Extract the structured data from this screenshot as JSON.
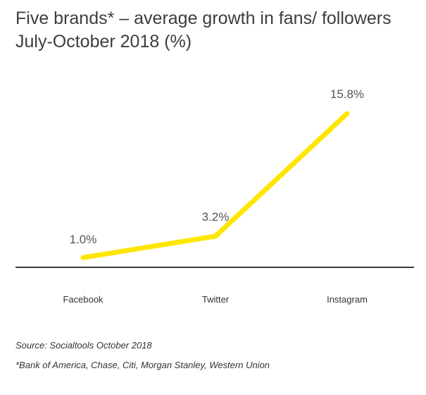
{
  "chart_data": {
    "type": "line",
    "title": "Five brands* – average growth in fans/ followers July-October 2018 (%)",
    "categories": [
      "Facebook",
      "Twitter",
      "Instagram"
    ],
    "series": [
      {
        "values": [
          1.0,
          3.2,
          15.8
        ],
        "labels": [
          "1.0%",
          "3.2%",
          "15.8%"
        ]
      }
    ],
    "ylim": [
      0,
      19
    ],
    "grid": false,
    "legend": "none",
    "line_color": "#ffe600",
    "axis_color": "#3d3d3d"
  },
  "source": "Source: Socialtools October 2018",
  "footnote": "*Bank of America, Chase, Citi, Morgan Stanley, Western Union"
}
